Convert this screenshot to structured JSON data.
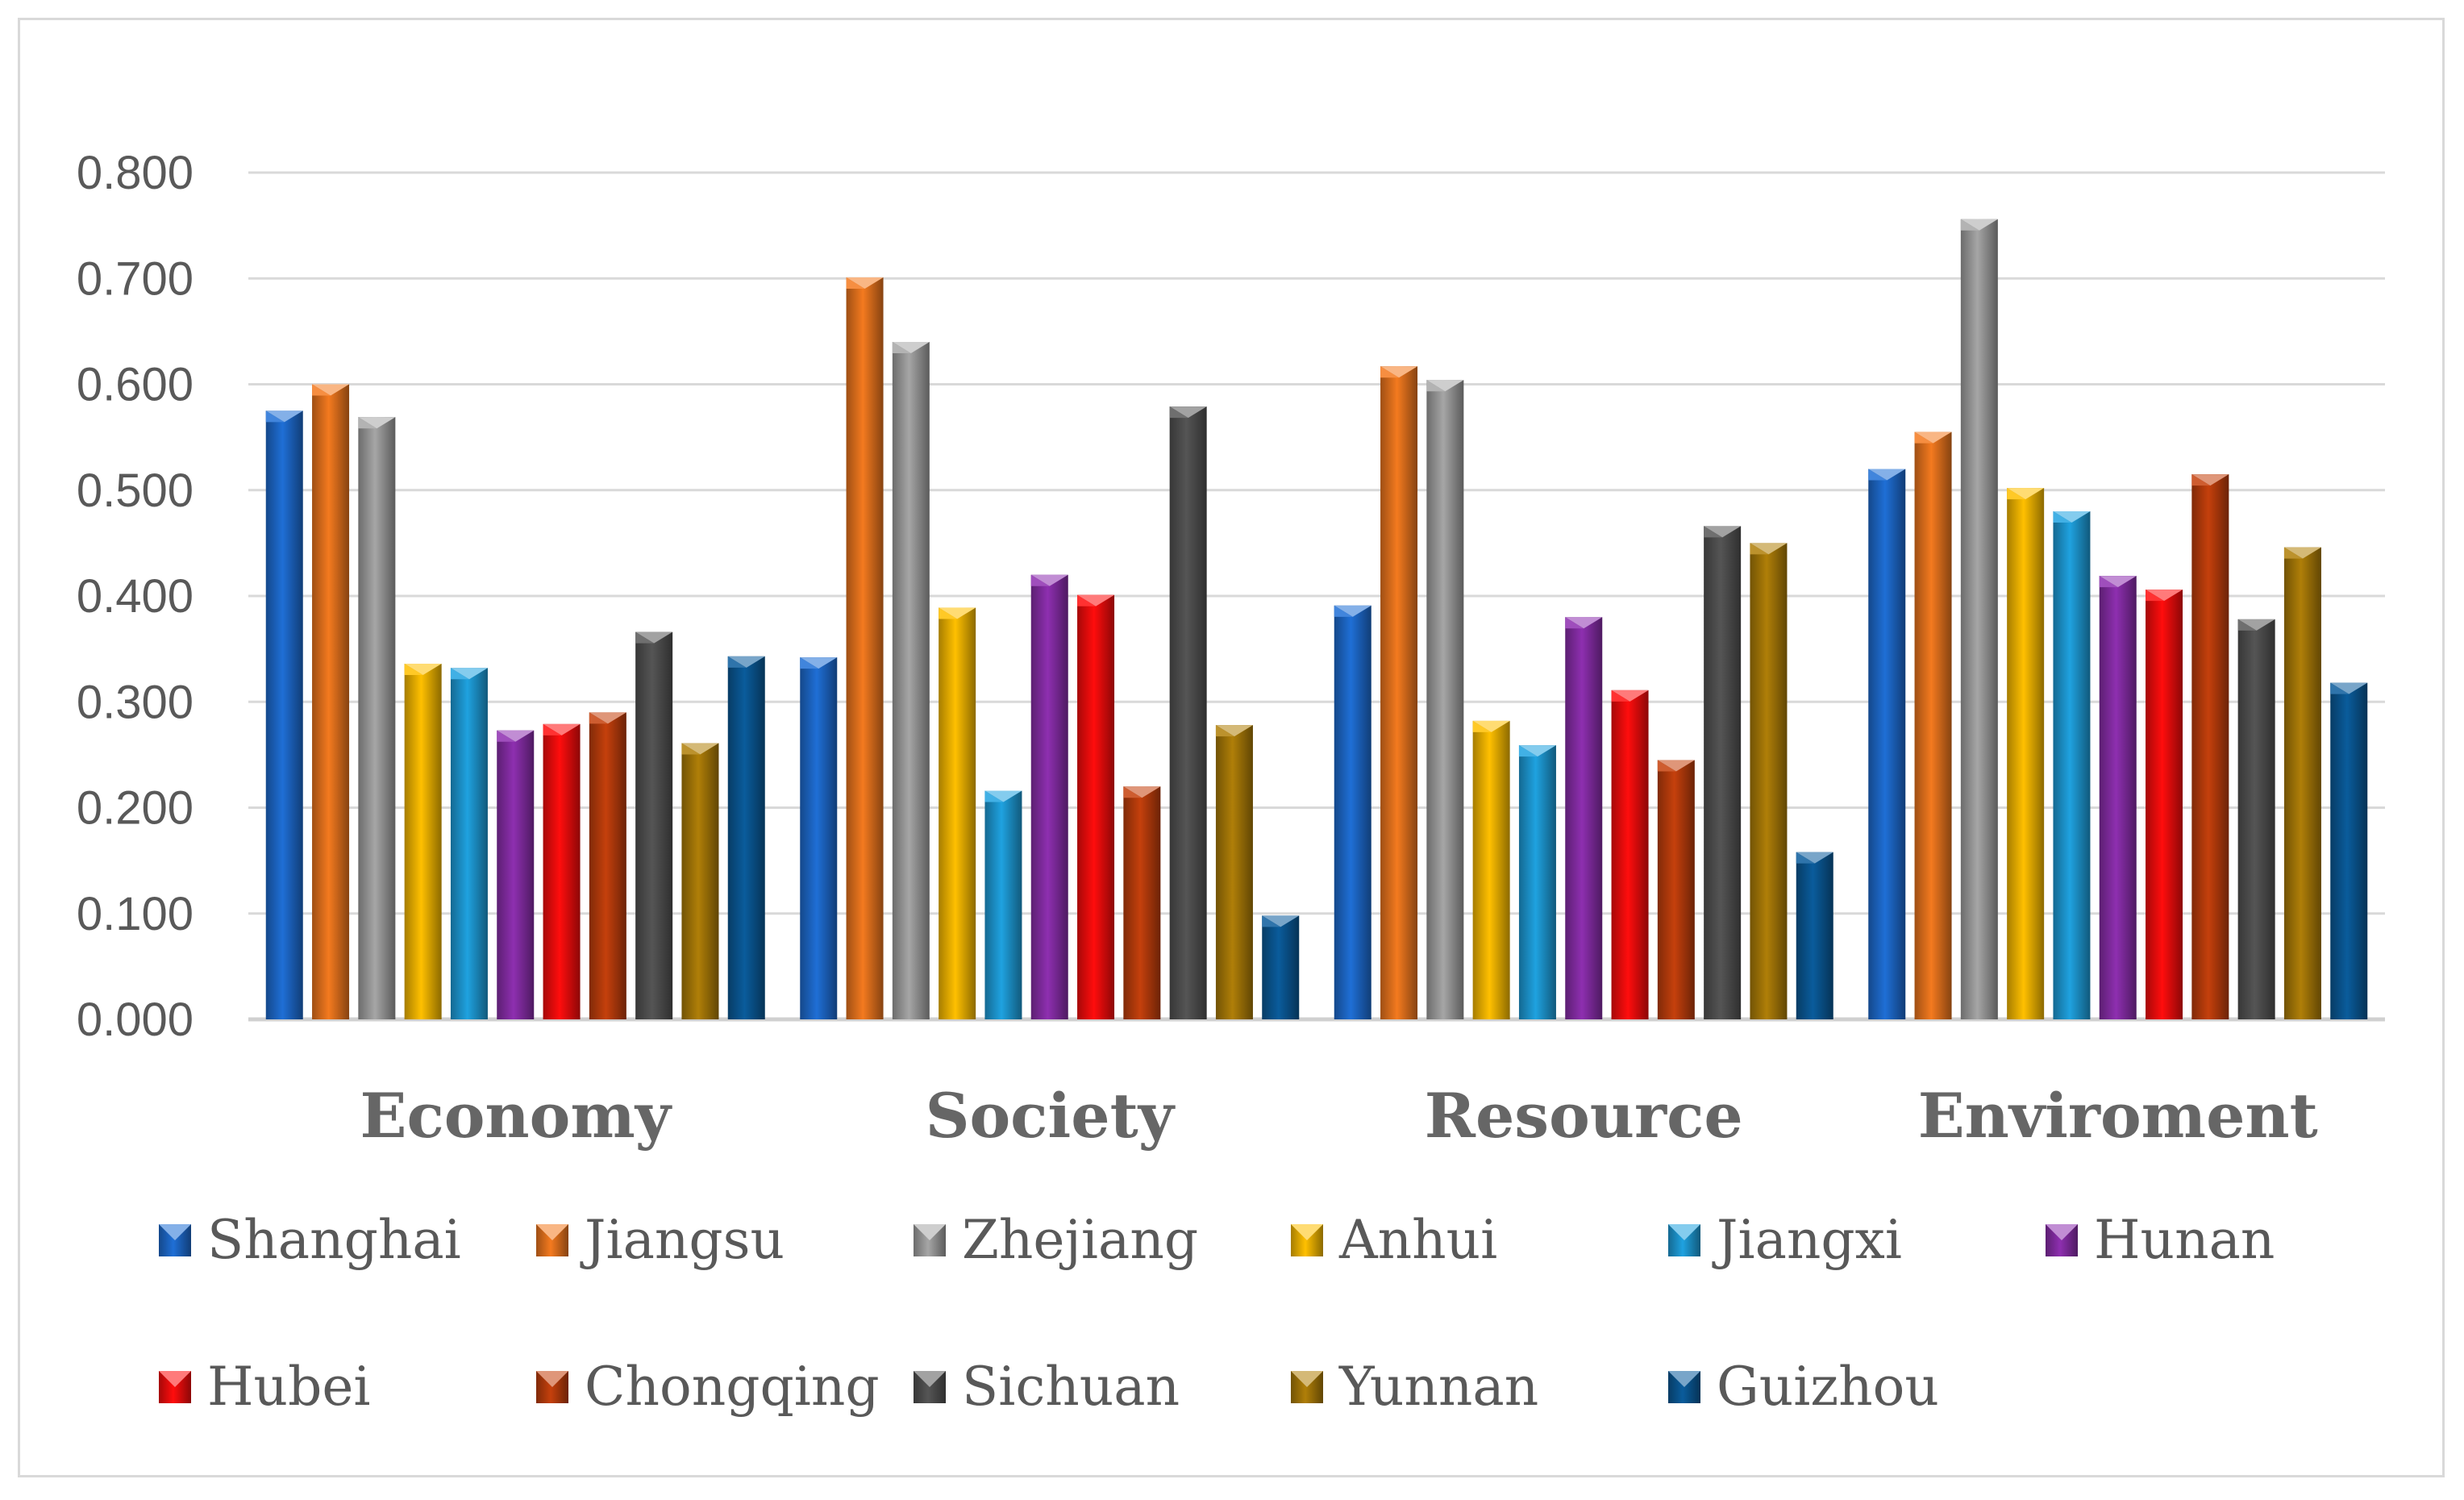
{
  "chart_data": {
    "type": "bar",
    "title": "",
    "xlabel": "",
    "ylabel": "",
    "ylim": [
      0,
      0.8
    ],
    "yticks": [
      "0.000",
      "0.100",
      "0.200",
      "0.300",
      "0.400",
      "0.500",
      "0.600",
      "0.700",
      "0.800"
    ],
    "grid": true,
    "legend_position": "bottom",
    "categories": [
      "Economy",
      "Society",
      "Resource",
      "Enviroment"
    ],
    "series": [
      {
        "name": "Shanghai",
        "color": "#1f6fd6",
        "values": [
          0.575,
          0.342,
          0.391,
          0.52
        ]
      },
      {
        "name": "Jiangsu",
        "color": "#f47a1f",
        "values": [
          0.6,
          0.701,
          0.617,
          0.555
        ]
      },
      {
        "name": "Zhejiang",
        "color": "#a6a6a6",
        "values": [
          0.569,
          0.64,
          0.604,
          0.756
        ]
      },
      {
        "name": "Anhui",
        "color": "#ffc000",
        "values": [
          0.336,
          0.389,
          0.282,
          0.502
        ]
      },
      {
        "name": "Jiangxi",
        "color": "#1fa2e0",
        "values": [
          0.332,
          0.216,
          0.259,
          0.48
        ]
      },
      {
        "name": "Hunan",
        "color": "#8e2fb0",
        "values": [
          0.273,
          0.42,
          0.38,
          0.419
        ]
      },
      {
        "name": "Hubei",
        "color": "#ff0d0d",
        "values": [
          0.279,
          0.401,
          0.311,
          0.406
        ]
      },
      {
        "name": "Chongqing",
        "color": "#c5400c",
        "values": [
          0.29,
          0.22,
          0.245,
          0.515
        ]
      },
      {
        "name": "Sichuan",
        "color": "#555555",
        "values": [
          0.366,
          0.579,
          0.466,
          0.378
        ]
      },
      {
        "name": "Yunnan",
        "color": "#b07f08",
        "values": [
          0.261,
          0.278,
          0.45,
          0.446
        ]
      },
      {
        "name": "Guizhou",
        "color": "#0a5c9c",
        "values": [
          0.343,
          0.098,
          0.158,
          0.318
        ]
      }
    ]
  }
}
